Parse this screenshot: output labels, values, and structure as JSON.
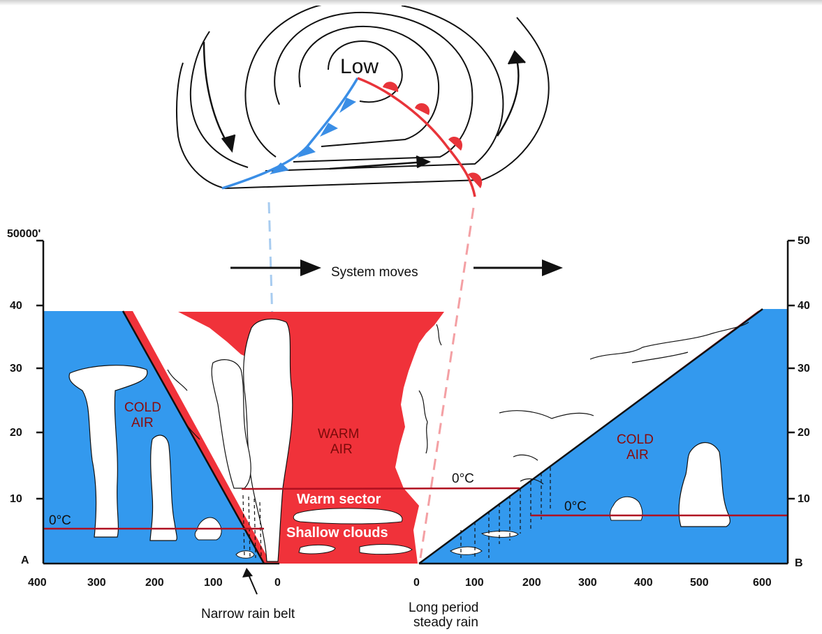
{
  "weather_map": {
    "low_label": "Low",
    "colors": {
      "cold_front": "#3a8ee6",
      "warm_front": "#e8343a",
      "isobar": "#111111"
    }
  },
  "cross_section": {
    "system_label": "System moves",
    "left_axis": {
      "top_label": "50000'",
      "ticks": [
        "40",
        "30",
        "20",
        "10"
      ],
      "end_label": "A"
    },
    "right_axis": {
      "ticks": [
        "50",
        "40",
        "30",
        "20",
        "10"
      ],
      "end_label": "B"
    },
    "x_left_ticks": [
      "400",
      "300",
      "200",
      "100",
      "0"
    ],
    "x_right_ticks": [
      "0",
      "100",
      "200",
      "300",
      "400",
      "500",
      "600"
    ],
    "air_labels": {
      "cold_left_1": "COLD",
      "cold_left_2": "AIR",
      "warm_1": "WARM",
      "warm_2": "AIR",
      "cold_right_1": "COLD",
      "cold_right_2": "AIR"
    },
    "freezing_labels": {
      "left": "0°C",
      "center": "0°C",
      "right": "0°C"
    },
    "sector_labels": {
      "warm_sector": "Warm sector",
      "shallow_clouds": "Shallow clouds"
    },
    "annotations": {
      "narrow_rain": "Narrow rain belt",
      "long_rain_1": "Long period",
      "long_rain_2": "steady rain"
    },
    "colors": {
      "cold_air": "#3399ee",
      "warm_air": "#f0323a",
      "freezing_line": "#b01020",
      "cloud": "#ffffff"
    }
  }
}
